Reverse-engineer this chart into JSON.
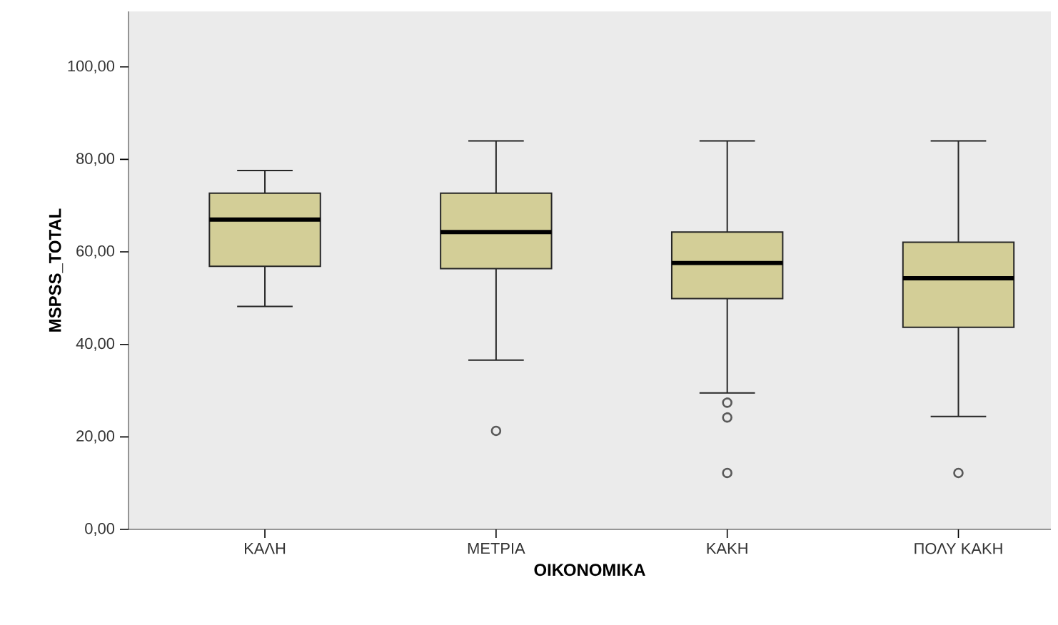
{
  "chart_data": {
    "type": "box",
    "xlabel": "ΟΙΚΟΝΟΜΙΚΑ",
    "ylabel": "MSPSS_TOTAL",
    "categories": [
      "ΚΑΛΗ",
      "ΜΕΤΡΙΑ",
      "ΚΑΚΗ",
      "ΠΟΛΥ ΚΑΚΗ"
    ],
    "boxes": [
      {
        "low": 48.2,
        "q1": 56.9,
        "median": 67.0,
        "q3": 72.7,
        "high": 77.6
      },
      {
        "low": 36.6,
        "q1": 56.4,
        "median": 64.3,
        "q3": 72.7,
        "high": 84,
        "outliers": [
          21.3
        ]
      },
      {
        "low": 29.5,
        "q1": 49.9,
        "median": 57.6,
        "q3": 64.3,
        "high": 84,
        "outliers": [
          27.4,
          24.2,
          12.2
        ]
      },
      {
        "low": 24.4,
        "q1": 43.7,
        "median": 54.3,
        "q3": 62.1,
        "high": 84,
        "outliers": [
          12.2
        ]
      }
    ],
    "color": "#d3ce97",
    "marker": "circle",
    "grid": false,
    "ylim": [
      0,
      112
    ],
    "yticks": [
      {
        "value": 0,
        "label": "0,00"
      },
      {
        "value": 20,
        "label": "20,00"
      },
      {
        "value": 40,
        "label": "40,00"
      },
      {
        "value": 60,
        "label": "60,00"
      },
      {
        "value": 80,
        "label": "80,00"
      },
      {
        "value": 100,
        "label": "100,00"
      }
    ]
  }
}
